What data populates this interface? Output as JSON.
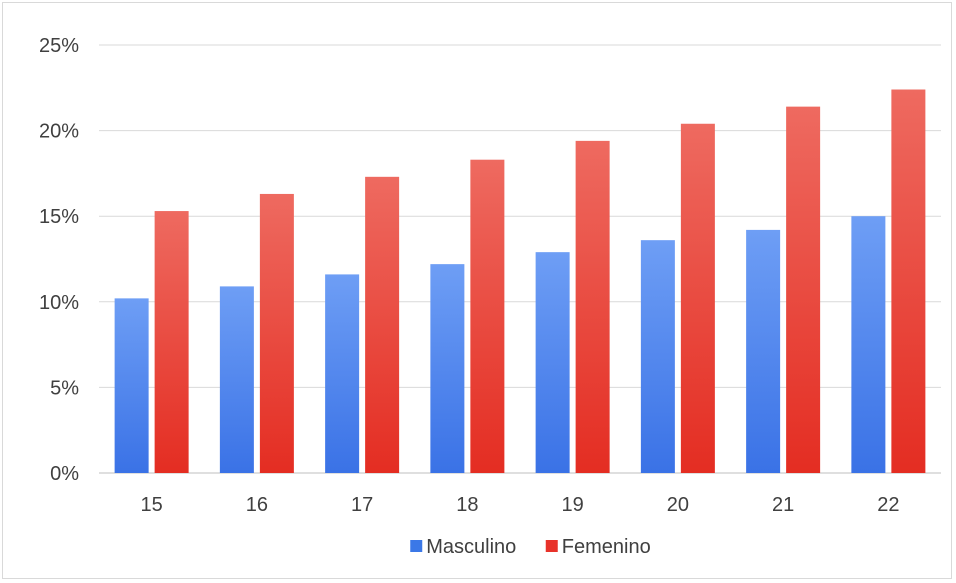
{
  "chart_data": {
    "type": "bar",
    "categories": [
      "15",
      "16",
      "17",
      "18",
      "19",
      "20",
      "21",
      "22"
    ],
    "series": [
      {
        "name": "Masculino",
        "values": [
          10.2,
          10.9,
          11.6,
          12.2,
          12.9,
          13.6,
          14.2,
          15.0
        ],
        "color": "#3b78e7"
      },
      {
        "name": "Femenino",
        "values": [
          15.3,
          16.3,
          17.3,
          18.3,
          19.4,
          20.4,
          21.4,
          22.4
        ],
        "color": "#e8322a"
      }
    ],
    "title": "",
    "xlabel": "",
    "ylabel": "",
    "ylim": [
      0,
      25
    ],
    "yticks": [
      "0%",
      "5%",
      "10%",
      "15%",
      "20%",
      "25%"
    ],
    "grid": true,
    "legend_position": "bottom"
  }
}
